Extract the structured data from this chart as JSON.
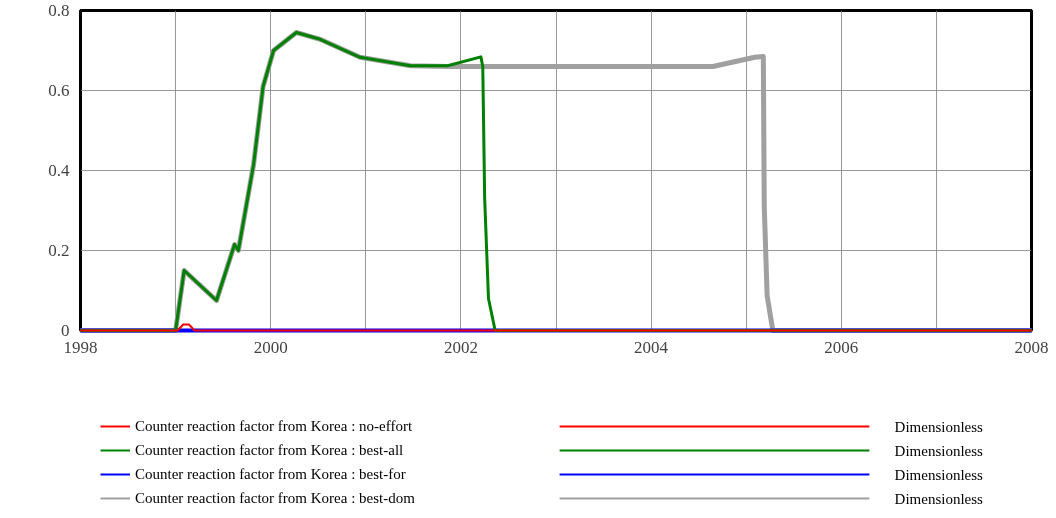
{
  "chart_data": {
    "type": "line",
    "xlim": [
      1998,
      2008
    ],
    "ylim": [
      0,
      0.8
    ],
    "xticks": [
      1998,
      {
        "value": 1999,
        "label": null
      },
      2000,
      {
        "value": 2001,
        "label": null
      },
      2002,
      {
        "value": 2003,
        "label": null
      },
      2004,
      {
        "value": 2005,
        "label": null
      },
      2006,
      {
        "value": 2007,
        "label": null
      },
      2008
    ],
    "yticks": [
      0,
      0.2,
      0.4,
      0.6,
      0.8
    ],
    "grid": true,
    "legend": "bottom",
    "annotations": [
      "Dimensionless",
      "Dimensionless",
      "Dimensionless",
      "Dimensionless"
    ],
    "series": [
      {
        "name": "Counter reaction factor from Korea : no-effort",
        "color": "#ff0000",
        "x": [
          1998,
          1999.02,
          1999.08,
          1999.14,
          1999.2,
          2008
        ],
        "values": [
          0,
          0,
          0.015,
          0.015,
          0,
          0
        ]
      },
      {
        "name": "Counter reaction factor from Korea : best-all",
        "color": "#008000",
        "x": [
          1998,
          1999.0,
          1999.09,
          1999.43,
          1999.62,
          1999.66,
          1999.82,
          1999.92,
          2000.03,
          2000.27,
          2000.52,
          2000.94,
          2001.47,
          2001.86,
          2002.21,
          2002.23,
          2002.25,
          2002.29,
          2002.36,
          2008
        ],
        "values": [
          0,
          0,
          0.15,
          0.075,
          0.215,
          0.2,
          0.415,
          0.61,
          0.7,
          0.745,
          0.728,
          0.683,
          0.662,
          0.662,
          0.684,
          0.66,
          0.33,
          0.08,
          0,
          0
        ]
      },
      {
        "name": "Counter reaction factor from Korea : best-for",
        "color": "#0000ff",
        "x": [
          1998,
          2008
        ],
        "values": [
          0,
          0
        ]
      },
      {
        "name": "Counter reaction factor from Korea : best-dom",
        "color": "#a0a0a0",
        "x": [
          1998,
          1999.0,
          1999.09,
          1999.43,
          1999.62,
          1999.66,
          1999.82,
          1999.92,
          2000.03,
          2000.27,
          2000.52,
          2000.94,
          2001.47,
          2001.86,
          2004.65,
          2005.09,
          2005.18,
          2005.19,
          2005.22,
          2005.28,
          2008
        ],
        "values": [
          0,
          0,
          0.15,
          0.075,
          0.215,
          0.2,
          0.415,
          0.61,
          0.7,
          0.745,
          0.728,
          0.683,
          0.662,
          0.66,
          0.66,
          0.683,
          0.685,
          0.31,
          0.087,
          0,
          0
        ]
      }
    ]
  }
}
